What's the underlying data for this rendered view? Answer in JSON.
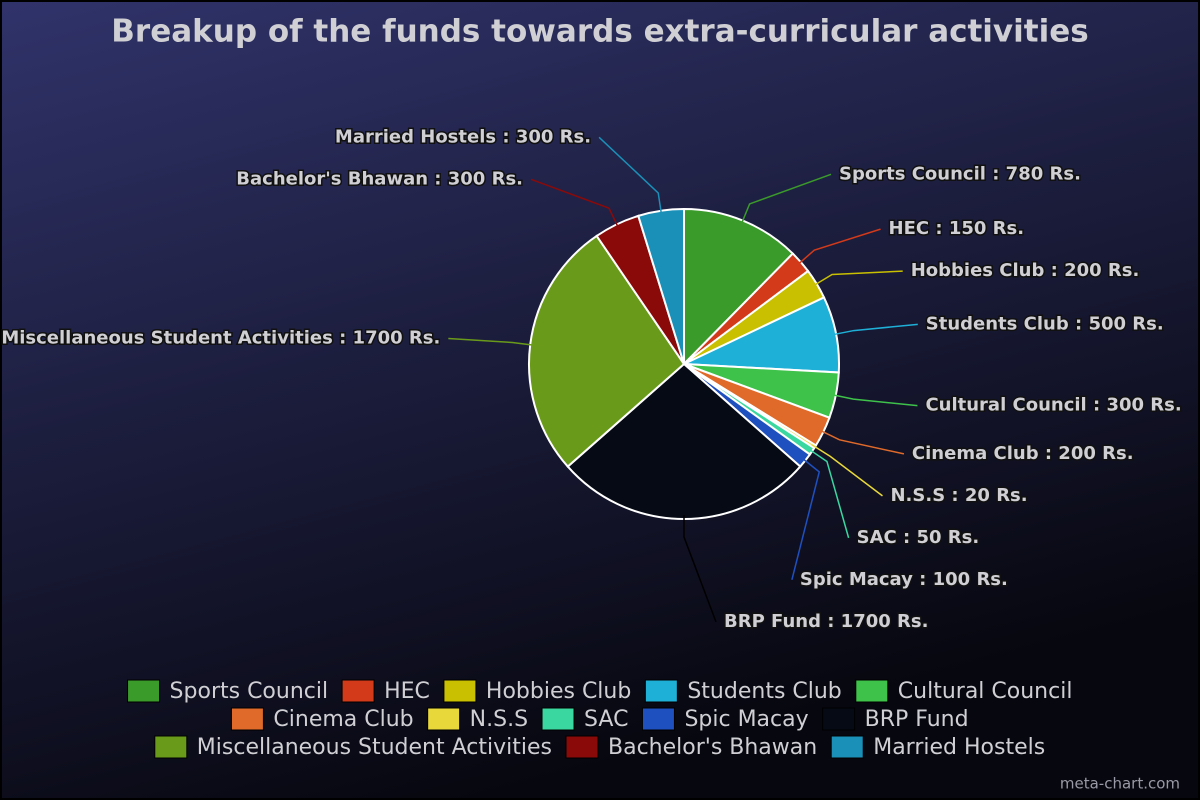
{
  "chart_data": {
    "type": "pie",
    "title": "Breakup of the funds towards extra-curricular activities",
    "categories": [
      "Sports Council",
      "HEC",
      "Hobbies Club",
      "Students Club",
      "Cultural Council",
      "Cinema Club",
      "N.S.S",
      "SAC",
      "Spic Macay",
      "BRP Fund",
      "Miscellaneous Student Activities",
      "Bachelor's Bhawan",
      "Married Hostels"
    ],
    "values": [
      780,
      150,
      200,
      500,
      300,
      200,
      20,
      50,
      100,
      1700,
      1700,
      300,
      300
    ],
    "value_labels": [
      "Sports Council : 780 Rs.",
      "HEC : 150 Rs.",
      "Hobbies Club : 200 Rs.",
      "Students Club : 500 Rs.",
      "Cultural Council : 300 Rs.",
      "Cinema Club : 200 Rs.",
      "N.S.S : 20 Rs.",
      "SAC : 50 Rs.",
      "Spic Macay : 100 Rs.",
      "BRP Fund : 1700 Rs.",
      "Miscellaneous Student Activities : 1700 Rs.",
      "Bachelor's Bhawan : 300 Rs.",
      "Married Hostels : 300 Rs."
    ],
    "colors": [
      "#3a9a2a",
      "#d23a1a",
      "#c8c000",
      "#1fb0d8",
      "#3ec24a",
      "#e06a2a",
      "#e8d83a",
      "#3ad8a0",
      "#1f50c0",
      "#050a14",
      "#6a9a1a",
      "#8a0a0a",
      "#1a90b8"
    ],
    "legend": "bottom",
    "credit": "meta-chart.com"
  }
}
